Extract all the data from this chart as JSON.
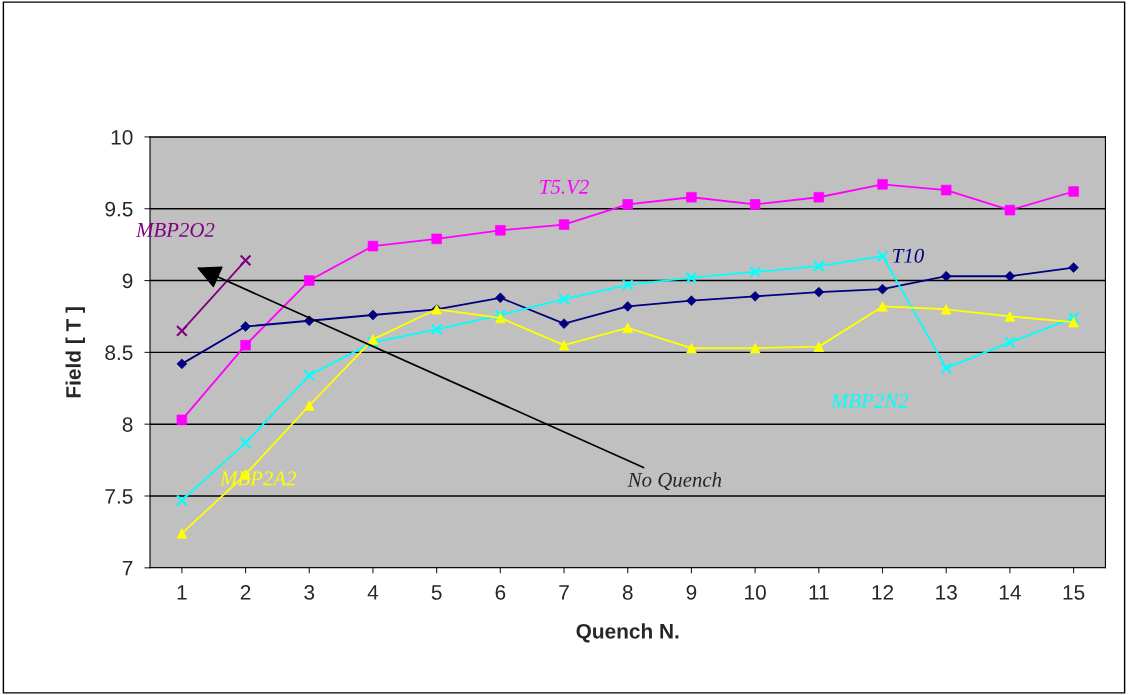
{
  "chart_data": {
    "type": "line",
    "xlabel": "Quench N.",
    "ylabel": "Field [ T ]",
    "categories": [
      "1",
      "2",
      "3",
      "4",
      "5",
      "6",
      "7",
      "8",
      "9",
      "10",
      "11",
      "12",
      "13",
      "14",
      "15"
    ],
    "ylim": [
      7,
      10
    ],
    "yticks": [
      7,
      7.5,
      8,
      8.5,
      9,
      9.5,
      10
    ],
    "grid": "y",
    "legend": false,
    "series": [
      {
        "name": "T5.V2",
        "color": "#ff00ff",
        "marker": "square",
        "values": [
          8.03,
          8.55,
          9.0,
          9.24,
          9.29,
          9.35,
          9.39,
          9.53,
          9.58,
          9.53,
          9.58,
          9.67,
          9.63,
          9.49,
          9.62
        ]
      },
      {
        "name": "T10",
        "color": "#000080",
        "marker": "diamond",
        "values": [
          8.42,
          8.68,
          8.72,
          8.76,
          8.8,
          8.88,
          8.7,
          8.82,
          8.86,
          8.89,
          8.92,
          8.94,
          9.03,
          9.03,
          9.09
        ]
      },
      {
        "name": "MBP2N2",
        "color": "#00ffff",
        "marker": "cross",
        "values": [
          7.47,
          7.87,
          8.34,
          8.57,
          8.66,
          8.76,
          8.87,
          8.97,
          9.02,
          9.06,
          9.1,
          9.17,
          8.39,
          8.57,
          8.74
        ]
      },
      {
        "name": "MBP2A2",
        "color": "#ffff00",
        "marker": "triangle",
        "values": [
          7.24,
          7.65,
          8.13,
          8.59,
          8.8,
          8.74,
          8.55,
          8.67,
          8.53,
          8.53,
          8.54,
          8.82,
          8.8,
          8.75,
          8.71
        ]
      },
      {
        "name": "MBP2O2",
        "color": "#800080",
        "marker": "cross",
        "values": [
          8.65,
          9.14,
          null,
          null,
          null,
          null,
          null,
          null,
          null,
          null,
          null,
          null,
          null,
          null,
          null
        ]
      }
    ],
    "annotations": [
      "No Quench"
    ]
  }
}
